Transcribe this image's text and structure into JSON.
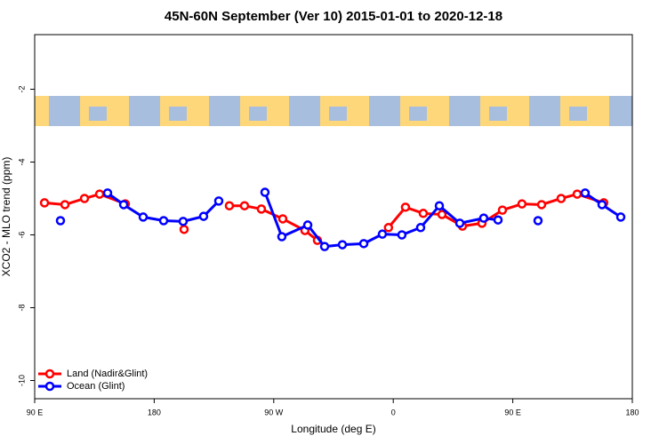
{
  "chart_data": {
    "type": "line",
    "title": "45N-60N September (Ver 10)   2015-01-01 to 2020-12-18",
    "x_label": "Longitude (deg E)",
    "y_label": "XCO2 - MLO trend (ppm)",
    "xlim": [
      90,
      540
    ],
    "xticks": [
      {
        "value": 90,
        "label": "90 E"
      },
      180,
      {
        "value": 270,
        "label": "90 W"
      },
      {
        "value": 360,
        "label": "0"
      },
      {
        "value": 450,
        "label": "90 E"
      },
      {
        "value": 540,
        "label": "180"
      }
    ],
    "ylim": [
      -10.5,
      -0.5
    ],
    "yticks": [
      -2,
      -4,
      -6,
      -8,
      -10
    ],
    "legend": "bottom-left",
    "series": [
      {
        "name": "Land (Nadir&Glint)",
        "color": "#ff0000",
        "x": [
          97.4,
          112.8,
          127.5,
          138.9,
          158.3,
          null,
          202.5,
          null,
          236.6,
          248.0,
          260.7,
          276.8,
          293.5,
          302.9,
          null,
          356.4,
          369.2,
          382.6,
          396.7,
          412.1,
          426.8,
          442.2,
          456.9,
          471.7,
          486.4,
          498.5,
          518.5
        ],
        "values": [
          -5.12,
          -5.17,
          -5.0,
          -4.88,
          -5.15,
          null,
          -5.85,
          null,
          -5.2,
          -5.2,
          -5.29,
          -5.56,
          -5.88,
          -6.15,
          null,
          -5.8,
          -5.24,
          -5.41,
          -5.44,
          -5.76,
          -5.68,
          -5.32,
          -5.15,
          -5.17,
          -5.0,
          -4.88,
          -5.12
        ]
      },
      {
        "name": "Ocean (Glint)",
        "color": "#0000ff",
        "x": [
          109.4,
          null,
          144.9,
          157.0,
          171.7,
          187.1,
          201.8,
          217.2,
          228.6,
          null,
          263.4,
          276.1,
          295.6,
          308.3,
          321.7,
          337.8,
          351.8,
          366.5,
          380.6,
          394.7,
          410.1,
          428.1,
          438.9,
          null,
          469.0,
          null,
          504.5,
          517.2,
          531.3
        ],
        "values": [
          -5.61,
          null,
          -4.85,
          -5.17,
          -5.51,
          -5.61,
          -5.63,
          -5.49,
          -5.07,
          null,
          -4.83,
          -6.05,
          -5.73,
          -6.32,
          -6.27,
          -6.24,
          -5.98,
          -6.0,
          -5.8,
          -5.2,
          -5.68,
          -5.54,
          -5.59,
          null,
          -5.61,
          null,
          -4.85,
          -5.17,
          -5.51
        ]
      }
    ]
  }
}
